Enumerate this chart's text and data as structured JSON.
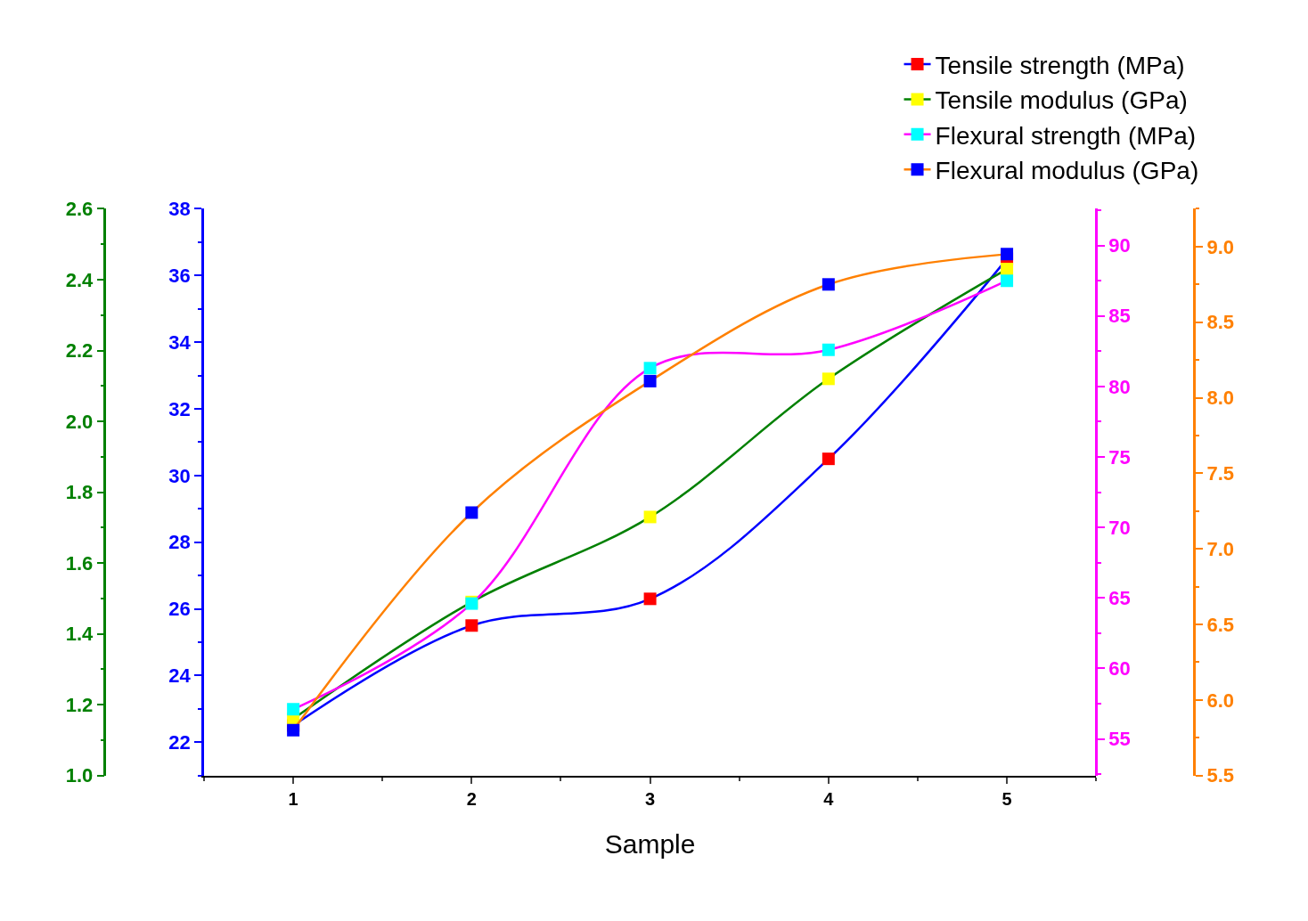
{
  "chart_data": [
    {
      "type": "line",
      "xlabel": "Sample",
      "x": [
        1,
        2,
        3,
        4,
        5
      ],
      "xlim": [
        0.5,
        5.5
      ],
      "xticks": [
        1,
        2,
        3,
        4,
        5
      ],
      "ylim": [
        21,
        38
      ],
      "yticks": [
        22,
        24,
        26,
        28,
        30,
        32,
        34,
        36,
        38
      ],
      "y2lim": [
        1.0,
        2.6
      ],
      "y2ticks": [
        {
          "value": 1.0,
          "label": "1.0"
        },
        {
          "value": 1.2,
          "label": "1.2"
        },
        {
          "value": 1.4,
          "label": "1.4"
        },
        {
          "value": 1.6,
          "label": "1.6"
        },
        {
          "value": 1.8,
          "label": "1.8"
        },
        {
          "value": 2.0,
          "label": "2.0"
        },
        {
          "value": 2.2,
          "label": "2.2"
        },
        {
          "value": 2.4,
          "label": "2.4"
        },
        {
          "value": 2.6,
          "label": "2.6"
        }
      ],
      "marker": "square",
      "line_style": "solid",
      "legend": "top right",
      "series": [
        {
          "name": "Tensile strength (MPa)",
          "color": "#0000ff",
          "colors": [
            "#ff0000",
            "#ff0000",
            "#ff0000",
            "#ff0000",
            "#ff0000"
          ],
          "values": [
            22.5,
            25.5,
            26.3,
            30.5,
            36.5
          ]
        },
        {
          "name": "Tensile modulus (GPa)",
          "color": "#008000",
          "colors": [
            "#ffff00",
            "#ffff00",
            "#ffff00",
            "#ffff00",
            "#ffff00"
          ],
          "axis": "y2",
          "values": [
            1.16,
            1.49,
            1.73,
            2.12,
            2.43
          ]
        }
      ]
    },
    {
      "type": "line",
      "x": [
        1,
        2,
        3,
        4,
        5
      ],
      "xlim": [
        0.5,
        5.5
      ],
      "xticks": [
        1,
        2,
        3,
        4,
        5
      ],
      "tick_labels": "y",
      "ylim": [
        52.4,
        92.6
      ],
      "yticks": [
        55,
        60,
        65,
        70,
        75,
        80,
        85,
        90
      ],
      "y2lim": [
        5.5,
        9.25
      ],
      "y2ticks": [
        {
          "value": 5.5,
          "label": "5.5"
        },
        {
          "value": 6.0,
          "label": "6.0"
        },
        {
          "value": 6.5,
          "label": "6.5"
        },
        {
          "value": 7.0,
          "label": "7.0"
        },
        {
          "value": 7.5,
          "label": "7.5"
        },
        {
          "value": 8.0,
          "label": "8.0"
        },
        {
          "value": 8.5,
          "label": "8.5"
        },
        {
          "value": 9.0,
          "label": "9.0"
        }
      ],
      "marker": "square",
      "line_style": "solid",
      "legend": "top right",
      "series": [
        {
          "name": "Flexural strength (MPa)",
          "color": "#ff00ff",
          "colors": [
            "#00ffff",
            "#00ffff",
            "#00ffff",
            "#00ffff",
            "#00ffff"
          ],
          "values": [
            57.1,
            64.6,
            81.3,
            82.6,
            87.5
          ]
        },
        {
          "name": "Flexural modulus (GPa)",
          "color": "#ff8000",
          "colors": [
            "#0000ff",
            "#0000ff",
            "#0000ff",
            "#0000ff",
            "#0000ff"
          ],
          "axis": "y2",
          "values": [
            5.8,
            7.24,
            8.11,
            8.75,
            8.95
          ]
        }
      ]
    }
  ]
}
